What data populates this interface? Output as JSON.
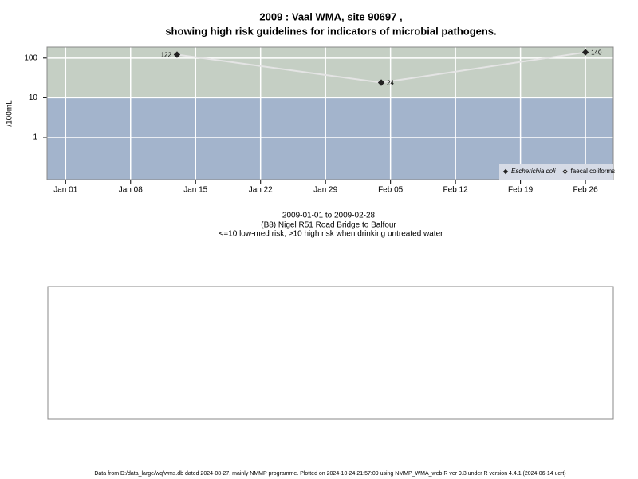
{
  "chart_data": {
    "type": "line",
    "title": "2009 : Vaal WMA, site 90697 ,",
    "title_line_2": "showing high risk guidelines for indicators of microbial pathogens.",
    "y_label": "/100mL",
    "subtitle": [
      "2009-01-01 to 2009-02-28",
      "(B8) Nigel R51 Road Bridge to Balfour",
      "<=10 low-med risk; >10 high risk when drinking untreated water"
    ],
    "footer": "Data from D:/data_large/wq/wms.db dated 2024-08-27, mainly NMMP programme. Plotted on 2024-10-24 21:57:09 using NMMP_WMA_web.R ver 9.3 under R version 4.4.1 (2024-06-14 ucrt)",
    "x": [
      "2009-01-13",
      "2009-02-04",
      "2009-02-26"
    ],
    "series": [
      {
        "name": "Escherichia coli",
        "color": "#222222",
        "marker": "filled",
        "values": [
          122,
          24,
          140
        ]
      },
      {
        "name": "faecal coliforms",
        "color": "#222222",
        "marker": "open",
        "values": [
          null,
          null,
          null
        ]
      }
    ],
    "line_color": "#e4e4e4",
    "xlim": [
      "2008-12-30",
      "2009-03-01"
    ],
    "xticks": [
      {
        "value": "2009-01-01",
        "label": "Jan 01"
      },
      {
        "value": "2009-01-08",
        "label": "Jan 08"
      },
      {
        "value": "2009-01-15",
        "label": "Jan 15"
      },
      {
        "value": "2009-01-22",
        "label": "Jan 22"
      },
      {
        "value": "2009-01-29",
        "label": "Jan 29"
      },
      {
        "value": "2009-02-05",
        "label": "Feb 05"
      },
      {
        "value": "2009-02-12",
        "label": "Feb 12"
      },
      {
        "value": "2009-02-19",
        "label": "Feb 19"
      },
      {
        "value": "2009-02-26",
        "label": "Feb 26"
      }
    ],
    "ylim": [
      0.085,
      190
    ],
    "yticks": [
      1,
      10,
      100
    ],
    "log_y": true,
    "grid": true,
    "threshold": 10,
    "band_colors": {
      "high": "#c5cfc4",
      "low": "#a3b4cc"
    },
    "legend": "lower right"
  }
}
